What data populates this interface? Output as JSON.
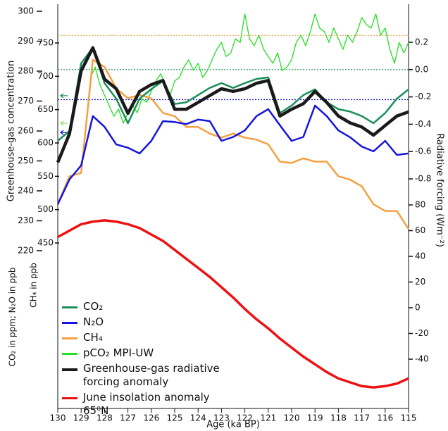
{
  "chart_data": {
    "type": "line",
    "x_label": "Age (ka BP)",
    "y_label": "Greenhouse-gas concentration",
    "y_sublabel": "CO₂ in ppm; N₂O in ppb",
    "y2_label": "CH₄ in ppb",
    "y3_label": "Radiative forcing (Wm⁻²)",
    "xlim": [
      130,
      115
    ],
    "xticks": [
      130,
      129,
      128,
      127,
      126,
      125,
      124,
      123,
      122,
      121,
      120,
      119,
      118,
      117,
      116,
      115
    ],
    "ylim": [
      220,
      300
    ],
    "yticks": [
      220,
      230,
      240,
      250,
      260,
      270,
      280,
      290,
      300
    ],
    "y2lim": [
      450,
      750
    ],
    "y2ticks": [
      450,
      500,
      550,
      600,
      650,
      700,
      750
    ],
    "y3lim": [
      -0.8,
      0.2
    ],
    "y3ticks": [
      -0.8,
      -0.6,
      -0.4,
      -0.2,
      {
        "value": 0,
        "label": "0.0"
      },
      0.2
    ],
    "y4lim": [
      -40,
      80
    ],
    "y4ticks": [
      -40,
      -20,
      0,
      20,
      40,
      60,
      80
    ],
    "reference_lines": [
      {
        "value": 0.25,
        "color": "#f4a040",
        "axis": "y3"
      },
      {
        "value": 0,
        "color": "#1a8f5a",
        "axis": "y3"
      },
      {
        "value": -0.22,
        "color": "#1515dd",
        "axis": "y3"
      }
    ],
    "arrows": [
      {
        "value": 271.8,
        "color": "#1a8f5a",
        "axis": "y"
      },
      {
        "value": 262.6,
        "color": "#9be07a",
        "axis": "y"
      },
      {
        "value": 259.5,
        "color": "#1515dd",
        "axis": "y"
      }
    ],
    "x": [
      130,
      129.5,
      129,
      128.5,
      128,
      127.5,
      127,
      126.5,
      126,
      125.5,
      125,
      124.5,
      124,
      123.5,
      123,
      122.5,
      122,
      121.5,
      121,
      120.5,
      120,
      119.5,
      119,
      118.5,
      118,
      117.5,
      117,
      116.5,
      116,
      115.5,
      115
    ],
    "series": [
      {
        "name": "CO₂",
        "color": "#1a8f5a",
        "axis": "y",
        "width": 2.5,
        "values": [
          256.7,
          260,
          282.6,
          287.8,
          276,
          270.8,
          262.6,
          270.8,
          274,
          276.7,
          269,
          269.6,
          272,
          274.4,
          276,
          274.4,
          276,
          277.4,
          277.9,
          266,
          268.5,
          272,
          273.9,
          269.6,
          267.3,
          266.5,
          265,
          262.6,
          266,
          270.8,
          273.9
        ]
      },
      {
        "name": "N₂O",
        "color": "#1515dd",
        "axis": "y",
        "width": 2.5,
        "values": [
          235.5,
          243.8,
          248.5,
          265,
          261.4,
          255.5,
          254.4,
          252.5,
          256.7,
          263.3,
          263,
          262.3,
          263.8,
          263.3,
          256.7,
          258,
          260.2,
          265,
          267.3,
          261.9,
          256.7,
          258,
          268.5,
          265,
          260.2,
          257.9,
          254.8,
          253.2,
          256.7,
          252,
          252.5
        ]
      },
      {
        "name": "CH₄",
        "color": "#f5a041",
        "axis": "y2",
        "width": 2.5,
        "values": [
          508,
          550,
          555,
          725,
          714,
          682,
          667,
          672,
          667,
          645,
          640,
          624,
          624,
          614,
          608,
          614,
          608,
          605,
          598,
          572,
          570,
          577,
          572,
          572,
          550,
          545,
          535,
          508,
          498,
          498,
          471
        ]
      },
      {
        "name": "pCO₂ MPI-UW",
        "color": "#22e022",
        "axis": "y",
        "width": 1.3,
        "x": [
          128.6,
          128.4,
          128.2,
          128,
          127.8,
          127.6,
          127.4,
          127.2,
          127,
          126.8,
          126.6,
          126.4,
          126.2,
          126,
          125.8,
          125.6,
          125.4,
          125.2,
          125,
          124.8,
          124.6,
          124.4,
          124.2,
          124,
          123.8,
          123.6,
          123.4,
          123.2,
          123,
          122.8,
          122.6,
          122.4,
          122.2,
          122,
          121.8,
          121.6,
          121.4,
          121.2,
          121,
          120.8,
          120.6,
          120.4,
          120.2,
          120,
          119.8,
          119.6,
          119.4,
          119.2,
          119,
          118.8,
          118.6,
          118.4,
          118.2,
          118,
          117.8,
          117.6,
          117.4,
          117.2,
          117,
          116.8,
          116.6,
          116.4,
          116.2,
          116,
          115.8,
          115.6,
          115.4,
          115.2,
          115
        ],
        "values": [
          277.9,
          281.4,
          275.5,
          272,
          268.5,
          264.9,
          267.3,
          262.6,
          266.1,
          268.5,
          266.1,
          270.8,
          269.6,
          273.2,
          276.7,
          279.1,
          275.5,
          272,
          276.7,
          277.9,
          281.4,
          283.8,
          280.2,
          282.6,
          277.9,
          280.2,
          283.8,
          287.3,
          289.6,
          284.9,
          286.1,
          290.8,
          289.6,
          299.1,
          290.8,
          288.5,
          292,
          287.3,
          284.9,
          282.6,
          286.1,
          280.2,
          281.4,
          283.8,
          289.6,
          292,
          288.5,
          293.2,
          299.1,
          294.4,
          293.2,
          289.6,
          294.4,
          290.8,
          287.3,
          292,
          289.6,
          293.2,
          297.9,
          295.5,
          294.4,
          299.1,
          292,
          294.4,
          287.3,
          282.6,
          289.6,
          286.1,
          289.6
        ]
      },
      {
        "name": "Greenhouse-gas radiative forcing anomaly",
        "color": "#1a1a1a",
        "axis": "y3",
        "width": 4.5,
        "values": [
          -0.68,
          -0.47,
          -0.01,
          0.16,
          -0.07,
          -0.14,
          -0.32,
          -0.16,
          -0.11,
          -0.08,
          -0.29,
          -0.29,
          -0.24,
          -0.19,
          -0.14,
          -0.16,
          -0.14,
          -0.1,
          -0.08,
          -0.34,
          -0.29,
          -0.25,
          -0.16,
          -0.24,
          -0.34,
          -0.39,
          -0.42,
          -0.48,
          -0.41,
          -0.34,
          -0.31
        ]
      },
      {
        "name": "June insolation anomaly 65⁰N",
        "color": "#ee1111",
        "axis": "y4",
        "width": 3.5,
        "values": [
          55,
          60,
          65,
          67,
          68,
          67,
          65,
          62,
          57,
          52,
          45,
          38,
          31,
          24,
          16,
          8,
          -1,
          -9,
          -16,
          -24,
          -31,
          -38,
          -44,
          -50,
          -55,
          -58,
          -61,
          -62,
          -61,
          -59,
          -55
        ]
      }
    ]
  }
}
